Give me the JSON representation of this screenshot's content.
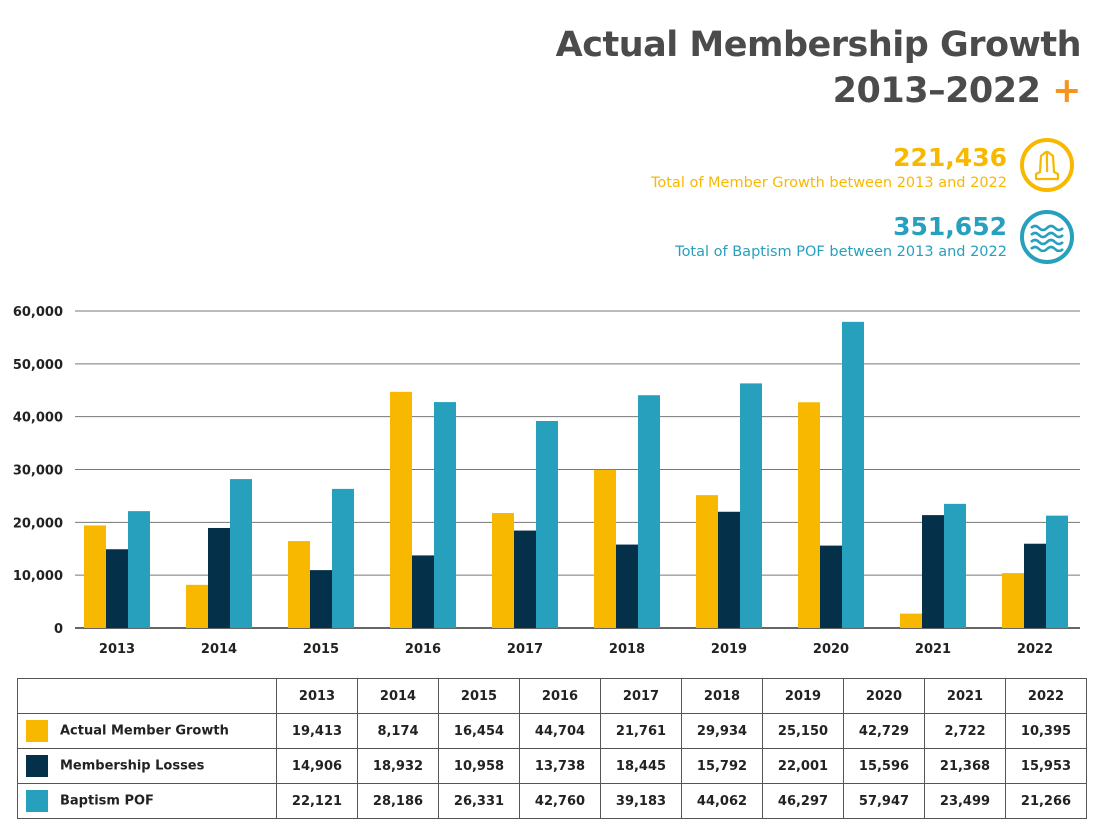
{
  "title_line1": "Actual Membership Growth",
  "title_line2": "2013–2022",
  "title_plus": "+",
  "stats": [
    {
      "value": "221,436",
      "label": "Total of Member Growth between 2013 and 2022",
      "icon": "praying-hands-icon",
      "color": "#f9b800"
    },
    {
      "value": "351,652",
      "label": "Total of Baptism POF between 2013 and 2022",
      "icon": "water-waves-icon",
      "color": "#27a0be"
    }
  ],
  "chart_data": {
    "type": "bar",
    "categories": [
      "2013",
      "2014",
      "2015",
      "2016",
      "2017",
      "2018",
      "2019",
      "2020",
      "2021",
      "2022"
    ],
    "series": [
      {
        "name": "Actual Member Growth",
        "color": "#f9b800",
        "values": [
          19413,
          8174,
          16454,
          44704,
          21761,
          29934,
          25150,
          42729,
          2722,
          10395
        ]
      },
      {
        "name": "Membership Losses",
        "color": "#05304a",
        "values": [
          14906,
          18932,
          10958,
          13738,
          18445,
          15792,
          22001,
          15596,
          21368,
          15953
        ]
      },
      {
        "name": "Baptism POF",
        "color": "#27a0be",
        "values": [
          22121,
          28186,
          26331,
          42760,
          39183,
          44062,
          46297,
          57947,
          23499,
          21266
        ]
      }
    ],
    "ylim": [
      0,
      60000
    ],
    "yticks": [
      "0",
      "10,000",
      "20,000",
      "30,000",
      "40,000",
      "50,000",
      "60,000"
    ],
    "grid": true,
    "legend": "table-below"
  }
}
